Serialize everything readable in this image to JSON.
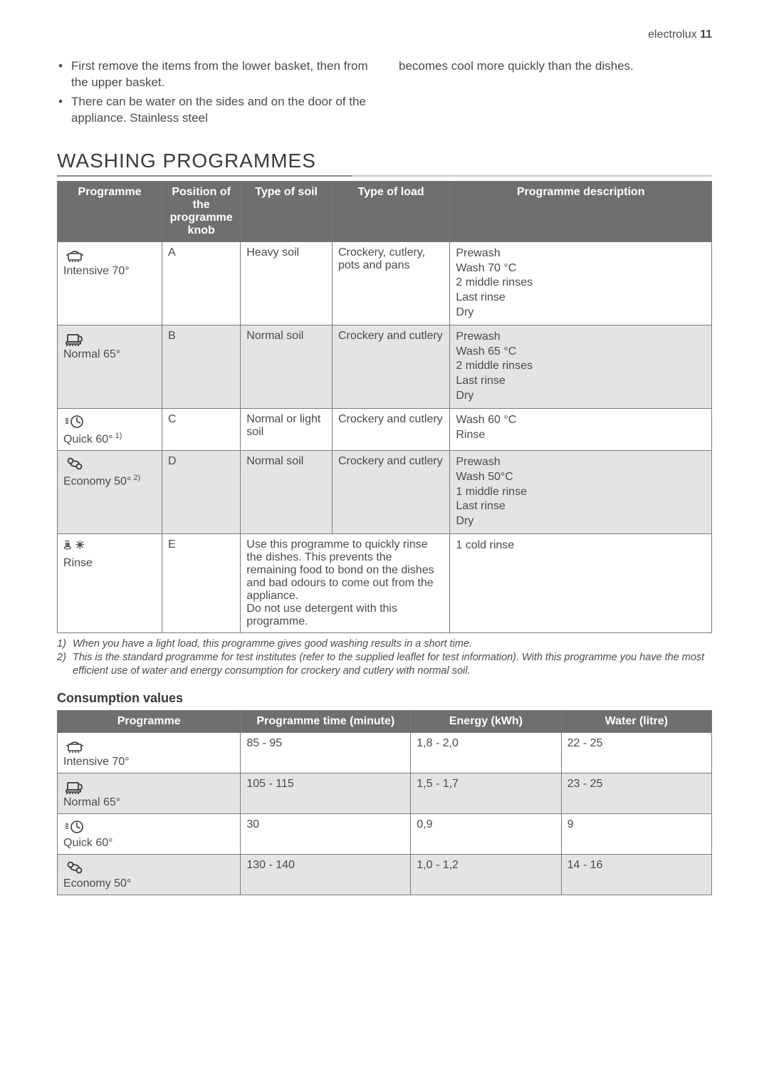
{
  "header": {
    "brand": "electrolux",
    "page_num": "11"
  },
  "intro": {
    "left_bullets": [
      "First remove the items from the lower basket, then from the upper basket.",
      "There can be water on the sides and on the door of the appliance. Stainless steel"
    ],
    "right_text": "becomes cool more quickly than the dishes."
  },
  "section_title": "WASHING PROGRAMMES",
  "table1": {
    "headers": [
      "Programme",
      "Position of the programme knob",
      "Type of soil",
      "Type of load",
      "Programme description"
    ],
    "col_widths": [
      "16%",
      "12%",
      "14%",
      "18%",
      "40%"
    ],
    "rows": [
      {
        "alt": false,
        "icon": "pot",
        "label": "Intensive 70°",
        "knob": "A",
        "soil": "Heavy soil",
        "load": "Crockery, cutlery, pots and pans",
        "desc": [
          "Prewash",
          "Wash 70 °C",
          "2 middle rinses",
          "Last rinse",
          "Dry"
        ]
      },
      {
        "alt": true,
        "icon": "cup",
        "label": "Normal 65°",
        "knob": "B",
        "soil": "Normal soil",
        "load": "Crockery and cutlery",
        "desc": [
          "Prewash",
          "Wash 65 °C",
          "2 middle rinses",
          "Last rinse",
          "Dry"
        ]
      },
      {
        "alt": false,
        "icon": "clock",
        "label": "Quick 60°",
        "label_sup": "1)",
        "knob": "C",
        "soil": "Normal or light soil",
        "load": "Crockery and cutlery",
        "desc": [
          "Wash 60 °C",
          "Rinse"
        ]
      },
      {
        "alt": true,
        "icon": "eco",
        "label": "Economy 50°",
        "label_sup": "2)",
        "knob": "D",
        "soil": "Normal soil",
        "load": "Crockery and cutlery",
        "desc": [
          "Prewash",
          "Wash 50°C",
          "1 middle rinse",
          "Last rinse",
          "Dry"
        ]
      },
      {
        "alt": false,
        "icon": "rinse",
        "label": "Rinse",
        "knob": "E",
        "soil_load_merged": "Use this programme to quickly rinse the dishes. This prevents the remaining food to bond on the dishes and bad odours to come out from the appliance.\nDo not use detergent with this programme.",
        "desc": [
          "1 cold rinse"
        ]
      }
    ]
  },
  "footnotes": [
    {
      "n": "1)",
      "text": "When you have a light load, this programme gives good washing results in a short time."
    },
    {
      "n": "2)",
      "text": "This is the standard programme for test institutes (refer to the supplied leaflet for test information). With this programme you have the most efficient use of water and energy consumption for crockery and cutlery with normal soil."
    }
  ],
  "consumption_title": "Consumption values",
  "table2": {
    "headers": [
      "Programme",
      "Programme time (minute)",
      "Energy (kWh)",
      "Water (litre)"
    ],
    "col_widths": [
      "28%",
      "26%",
      "23%",
      "23%"
    ],
    "rows": [
      {
        "alt": false,
        "icon": "pot",
        "label": "Intensive 70°",
        "time": "85 - 95",
        "energy": "1,8 - 2,0",
        "water": "22 - 25"
      },
      {
        "alt": true,
        "icon": "cup",
        "label": "Normal 65°",
        "time": "105 - 115",
        "energy": "1,5 - 1,7",
        "water": "23 - 25"
      },
      {
        "alt": false,
        "icon": "clock",
        "label": "Quick 60°",
        "time": "30",
        "energy": "0,9",
        "water": "9"
      },
      {
        "alt": true,
        "icon": "eco",
        "label": "Economy 50°",
        "time": "130 - 140",
        "energy": "1,0 - 1,2",
        "water": "14 - 16"
      }
    ]
  },
  "icons_svg": {
    "pot": "<svg viewBox='0 0 32 24' stroke='#3a3a3a' stroke-width='1.6' fill='none'><rect x='7' y='10' width='18' height='9' rx='1'/><path d='M7 12 h-3 M25 12 h3'/><path d='M10 10 q6 -6 12 0'/><path d='M8 21 h16' stroke-dasharray='2 2'/></svg>",
    "cup": "<svg viewBox='0 0 32 24' stroke='#3a3a3a' stroke-width='1.8' fill='none'><rect x='6' y='7' width='15' height='10' rx='1'/><path d='M21 9 q5 0 5 4 t-5 4'/><rect x='4' y='17' width='20' height='3' rx='1'/><path d='M4 22 h20' stroke-dasharray='2 2'/></svg>",
    "clock": "<svg viewBox='0 0 32 24' stroke='#3a3a3a' stroke-width='1.6' fill='none'><path d='M3 8 h4 M3 11 h4 M3 14 h4'/><circle cx='19' cy='12' r='8'/><path d='M19 12 V6 M19 12 L24 14'/></svg>",
    "eco": "<svg viewBox='0 0 32 24' stroke='#3a3a3a' stroke-width='1.8' fill='none'><circle cx='10' cy='8' r='3.5'/><circle cx='22' cy='16' r='3.5'/><path d='M10 11 Q10 16 19 16'/><path d='M22 13 Q22 8 13 8'/></svg>",
    "rinse": "<svg viewBox='0 0 44 24' stroke='#3a3a3a' stroke-width='1.6' fill='none'><path d='M4 6 q3 -3 7 0'/><path d='M5 8 v7 M7 8 v7 M9 8 v7 M11 8 v7'/><ellipse cx='8' cy='18' rx='6' ry='2.5'/><path d='M24 12 h16 M32 4 v16 M26 6 l12 12 M38 6 l-12 12'/></svg>"
  }
}
